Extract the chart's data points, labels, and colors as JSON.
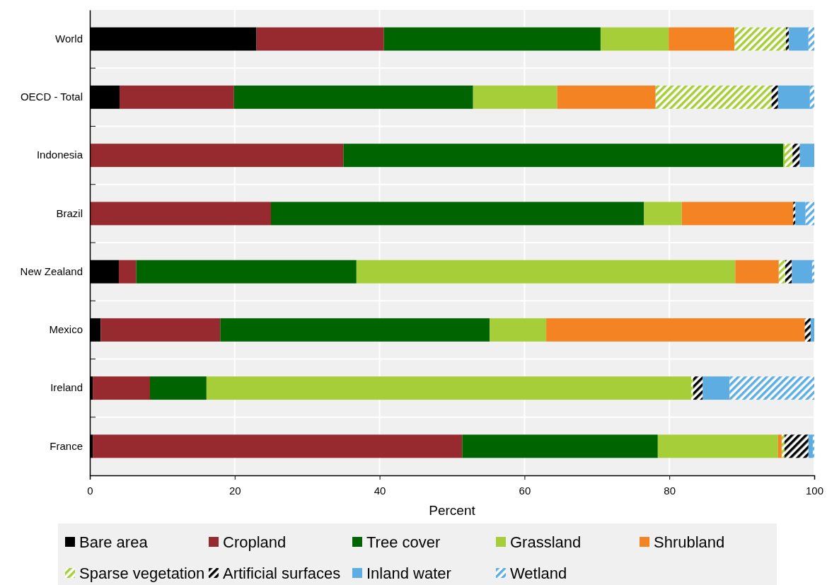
{
  "chart_data": {
    "type": "bar",
    "orientation": "horizontal",
    "stacked": true,
    "xlabel": "Percent",
    "categories": [
      "World",
      "OECD - Total",
      "Indonesia",
      "Brazil",
      "New Zealand",
      "Mexico",
      "Ireland",
      "France"
    ],
    "xlim": [
      0,
      100
    ],
    "xticks": [
      0,
      20,
      40,
      60,
      80,
      100
    ],
    "grid": true,
    "legend": "bottom",
    "series": [
      {
        "name": "Bare area",
        "color": "#000000",
        "values": [
          23.0,
          4.1,
          null,
          null,
          4.0,
          1.5,
          0.4,
          0.4
        ]
      },
      {
        "name": "Cropland",
        "color": "#962a2f",
        "values": [
          17.6,
          15.8,
          35.0,
          25.0,
          2.4,
          16.5,
          7.9,
          51.0
        ]
      },
      {
        "name": "Tree cover",
        "color": "#006400",
        "values": [
          29.9,
          33.0,
          60.7,
          51.5,
          30.4,
          37.2,
          7.8,
          27.0
        ]
      },
      {
        "name": "Grassland",
        "color": "#a6ce39",
        "values": [
          9.4,
          11.6,
          0.2,
          5.2,
          52.3,
          7.8,
          66.9,
          16.6
        ]
      },
      {
        "name": "Shrubland",
        "color": "#f48423",
        "values": [
          9.1,
          13.6,
          null,
          15.4,
          6.0,
          35.7,
          null,
          0.5
        ]
      },
      {
        "name": "Sparse vegetation",
        "color": "#a6ce39",
        "values": [
          7.1,
          16.0,
          1.1,
          null,
          0.9,
          null,
          0.3,
          0.4
        ]
      },
      {
        "name": "Artificial surfaces",
        "color": "#000000",
        "values": [
          0.4,
          0.9,
          1.0,
          0.3,
          0.9,
          0.8,
          1.3,
          3.3
        ]
      },
      {
        "name": "Inland water",
        "color": "#5dade2",
        "values": [
          2.7,
          4.4,
          2.0,
          1.4,
          2.8,
          0.5,
          3.7,
          0.6
        ]
      },
      {
        "name": "Wetland",
        "color": "#5dade2",
        "values": [
          0.8,
          0.6,
          null,
          1.2,
          0.3,
          null,
          11.7,
          0.2
        ]
      }
    ]
  }
}
